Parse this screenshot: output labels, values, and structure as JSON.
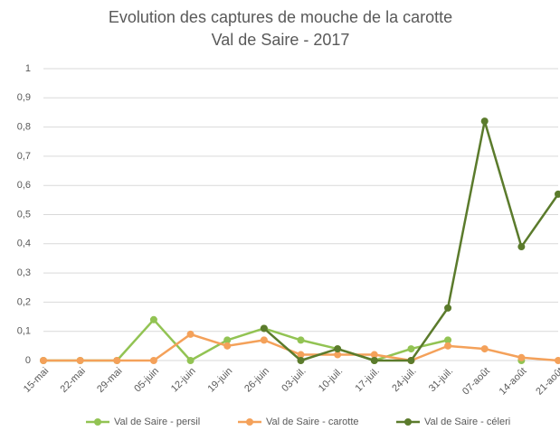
{
  "chart_data": {
    "type": "line",
    "title": "Evolution des captures de mouche de la carotte",
    "subtitle": "Val de Saire - 2017",
    "categories": [
      "15-mai",
      "22-mai",
      "29-mai",
      "05-juin",
      "12-juin",
      "19-juin",
      "26-juin",
      "03-juil.",
      "10-juil.",
      "17-juil.",
      "24-juil.",
      "31-juil.",
      "07-août",
      "14-août",
      "21-août"
    ],
    "series": [
      {
        "name": "Val de Saire - persil",
        "color": "#92c353",
        "values": [
          0,
          0,
          0,
          0.14,
          0,
          0.07,
          0.11,
          0.07,
          0.04,
          0,
          0.04,
          0.07,
          null,
          0,
          null
        ]
      },
      {
        "name": "Val de Saire - carotte",
        "color": "#f4a15a",
        "values": [
          0,
          0,
          0,
          0,
          0.09,
          0.05,
          0.07,
          0.02,
          0.02,
          0.02,
          0,
          0.05,
          0.04,
          0.01,
          0
        ]
      },
      {
        "name": "Val de Saire - céleri",
        "color": "#5b7b2c",
        "values": [
          null,
          null,
          null,
          null,
          null,
          null,
          0.11,
          0,
          0.04,
          0,
          0,
          0.18,
          0.82,
          0.39,
          0.57
        ]
      }
    ],
    "ylim": [
      0,
      1
    ],
    "yticks": [
      0,
      {
        "value": 0.1,
        "label": "0,1"
      },
      {
        "value": 0.2,
        "label": "0,2"
      },
      {
        "value": 0.3,
        "label": "0,3"
      },
      {
        "value": 0.4,
        "label": "0,4"
      },
      {
        "value": 0.5,
        "label": "0,5"
      },
      {
        "value": 0.6,
        "label": "0,6"
      },
      {
        "value": 0.7,
        "label": "0,7"
      },
      {
        "value": 0.8,
        "label": "0,8"
      },
      {
        "value": 0.9,
        "label": "0,9"
      },
      1
    ],
    "grid": true,
    "legend": "bottom"
  }
}
